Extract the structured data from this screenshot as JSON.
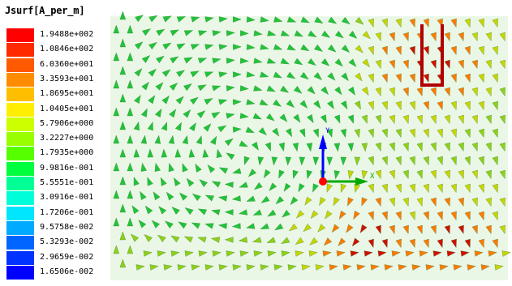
{
  "legend": {
    "title": "Jsurf[A_per_m]",
    "entries": [
      {
        "label": "1.9488e+002",
        "color": "#ff0000"
      },
      {
        "label": "1.0846e+002",
        "color": "#ff2a00"
      },
      {
        "label": "6.0360e+001",
        "color": "#ff5a00"
      },
      {
        "label": "3.3593e+001",
        "color": "#ff8c00"
      },
      {
        "label": "1.8695e+001",
        "color": "#ffbf00"
      },
      {
        "label": "1.0405e+001",
        "color": "#ffee00"
      },
      {
        "label": "5.7906e+000",
        "color": "#ccff00"
      },
      {
        "label": "3.2227e+000",
        "color": "#99ff00"
      },
      {
        "label": "1.7935e+000",
        "color": "#55ff00"
      },
      {
        "label": "9.9816e-001",
        "color": "#00ff3c"
      },
      {
        "label": "5.5551e-001",
        "color": "#00ff95"
      },
      {
        "label": "3.0916e-001",
        "color": "#00ffd8"
      },
      {
        "label": "1.7206e-001",
        "color": "#00e6ff"
      },
      {
        "label": "9.5758e-002",
        "color": "#00aaff"
      },
      {
        "label": "5.3293e-002",
        "color": "#0066ff"
      },
      {
        "label": "2.9659e-002",
        "color": "#0033ff"
      },
      {
        "label": "1.6506e-002",
        "color": "#0000ff"
      }
    ]
  },
  "axis_triad": {
    "y_label": "Y",
    "x_label": "X",
    "y_color": "#0000ff",
    "x_color": "#00aa00",
    "z_color": "#ff0000"
  },
  "field_colors": {
    "background": "#eaf7e6",
    "arrow_low": "#22c33a",
    "arrow_mid": "#c8d400",
    "arrow_high": "#d11000"
  }
}
